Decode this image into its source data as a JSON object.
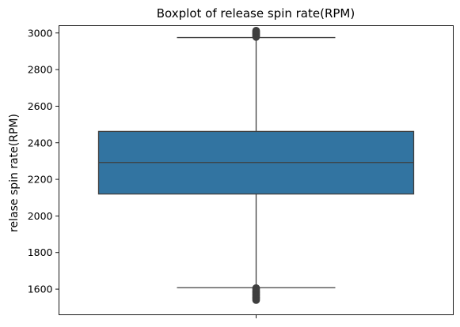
{
  "chart_data": {
    "type": "boxplot",
    "title": "Boxplot of release spin rate(RPM)",
    "xlabel": "",
    "ylabel": "relase spin rate(RPM)",
    "ylim": [
      1460,
      3040
    ],
    "yticks": [
      1600,
      1800,
      2000,
      2200,
      2400,
      2600,
      2800,
      3000
    ],
    "grid": false,
    "box": {
      "q1": 2120,
      "median": 2292,
      "q3": 2462,
      "whisker_low": 1608,
      "whisker_high": 2975,
      "color": "#3274a1",
      "edge_color": "#3f3f3f"
    },
    "outliers_high": [
      2978,
      2982,
      2986,
      2990,
      2994,
      2998,
      3002,
      3006,
      3010,
      3013
    ],
    "outliers_low": [
      1540,
      1545,
      1550,
      1555,
      1560,
      1565,
      1570,
      1575,
      1580,
      1585,
      1590,
      1596,
      1602,
      1606
    ]
  }
}
